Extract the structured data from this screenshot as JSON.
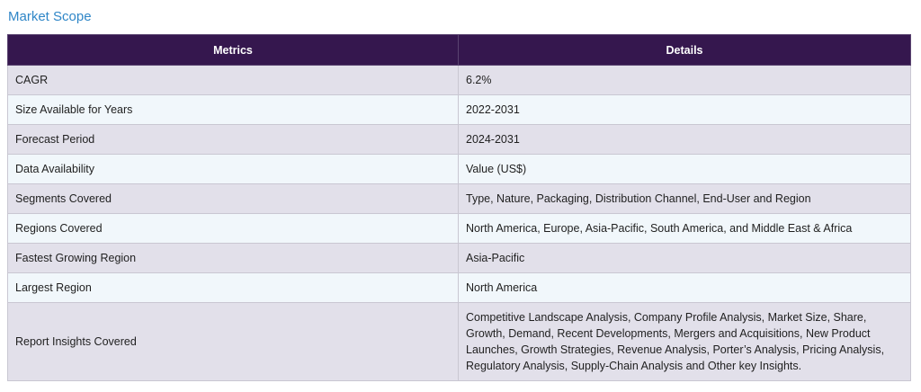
{
  "heading": "Market Scope",
  "table": {
    "headers": [
      "Metrics",
      "Details"
    ],
    "rows": [
      {
        "metric": "CAGR",
        "detail": "6.2%"
      },
      {
        "metric": "Size Available for Years",
        "detail": "2022-2031"
      },
      {
        "metric": "Forecast Period",
        "detail": "2024-2031"
      },
      {
        "metric": "Data Availability",
        "detail": "Value (US$)"
      },
      {
        "metric": "Segments Covered",
        "detail": "Type, Nature, Packaging, Distribution Channel, End-User and Region"
      },
      {
        "metric": "Regions Covered",
        "detail": "North America, Europe, Asia-Pacific, South America, and Middle East & Africa"
      },
      {
        "metric": "Fastest Growing Region",
        "detail": "Asia-Pacific"
      },
      {
        "metric": "Largest Region",
        "detail": "North America"
      },
      {
        "metric": "Report Insights Covered",
        "detail": "Competitive Landscape Analysis, Company Profile Analysis, Market Size, Share, Growth, Demand, Recent Developments, Mergers and Acquisitions, New Product Launches, Growth Strategies, Revenue Analysis, Porter’s Analysis, Pricing Analysis, Regulatory Analysis, Supply-Chain Analysis and Other key Insights."
      }
    ]
  }
}
